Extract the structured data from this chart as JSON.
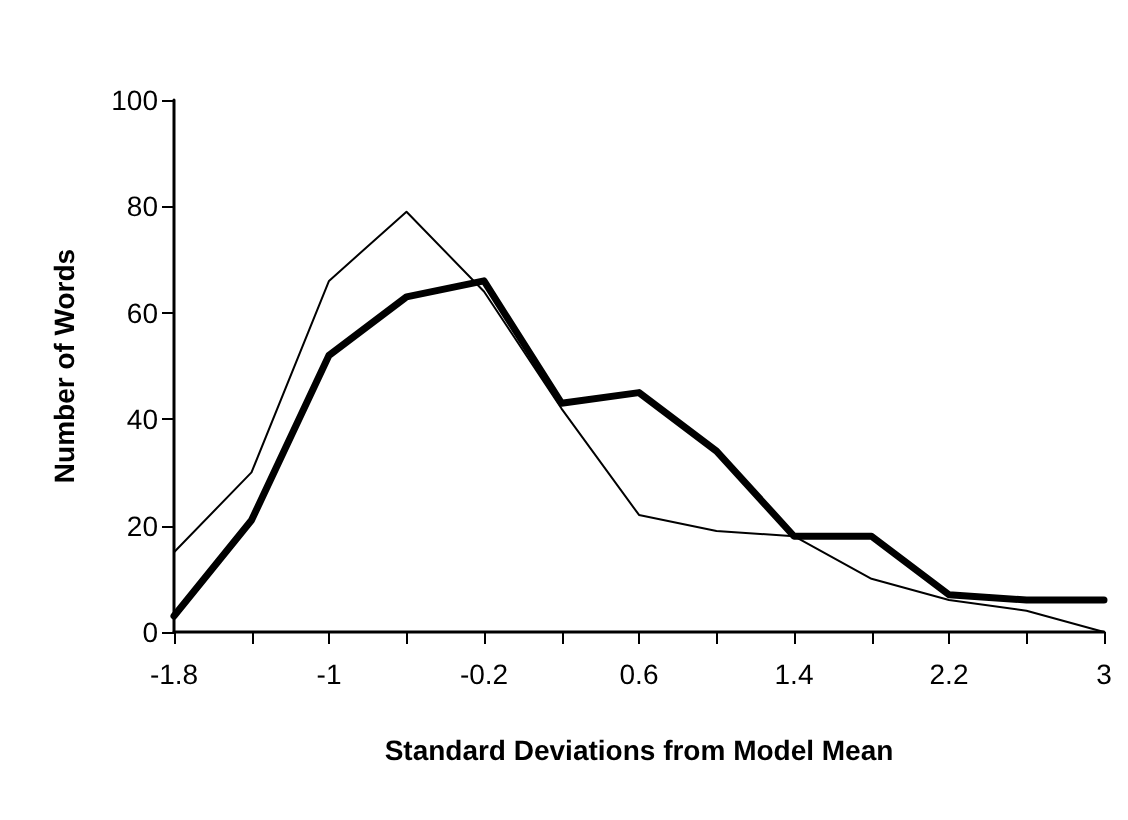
{
  "chart_data": {
    "type": "line",
    "xlabel": "Standard Deviations from Model Mean",
    "ylabel": "Number of Words",
    "x": [
      -1.8,
      -1.4,
      -1,
      -0.6,
      -0.2,
      0.2,
      0.6,
      1,
      1.4,
      1.8,
      2.2,
      2.6,
      3
    ],
    "series": [
      {
        "color": "#000000",
        "values": [
          3,
          21,
          52,
          63,
          66,
          43,
          45,
          34,
          18,
          18,
          7,
          6,
          6
        ]
      },
      {
        "color": "#000000",
        "values": [
          15,
          30,
          66,
          79,
          64,
          42,
          22,
          19,
          18,
          10,
          6,
          4,
          0
        ]
      }
    ],
    "xlim": [
      -1.8,
      3
    ],
    "xticks": [
      -1.8,
      {
        "value": -1.4,
        "label": null
      },
      -1,
      {
        "value": -0.6,
        "label": null
      },
      -0.2,
      {
        "value": 0.2,
        "label": null
      },
      0.6,
      {
        "value": 1,
        "label": null
      },
      1.4,
      {
        "value": 1.8,
        "label": null
      },
      2.2,
      {
        "value": 2.6,
        "label": null
      },
      3
    ],
    "ylim": [
      0,
      100
    ],
    "yticks": [
      0,
      20,
      40,
      60,
      80,
      100
    ],
    "grid": false,
    "marker": "none",
    "line_style": "solid"
  }
}
